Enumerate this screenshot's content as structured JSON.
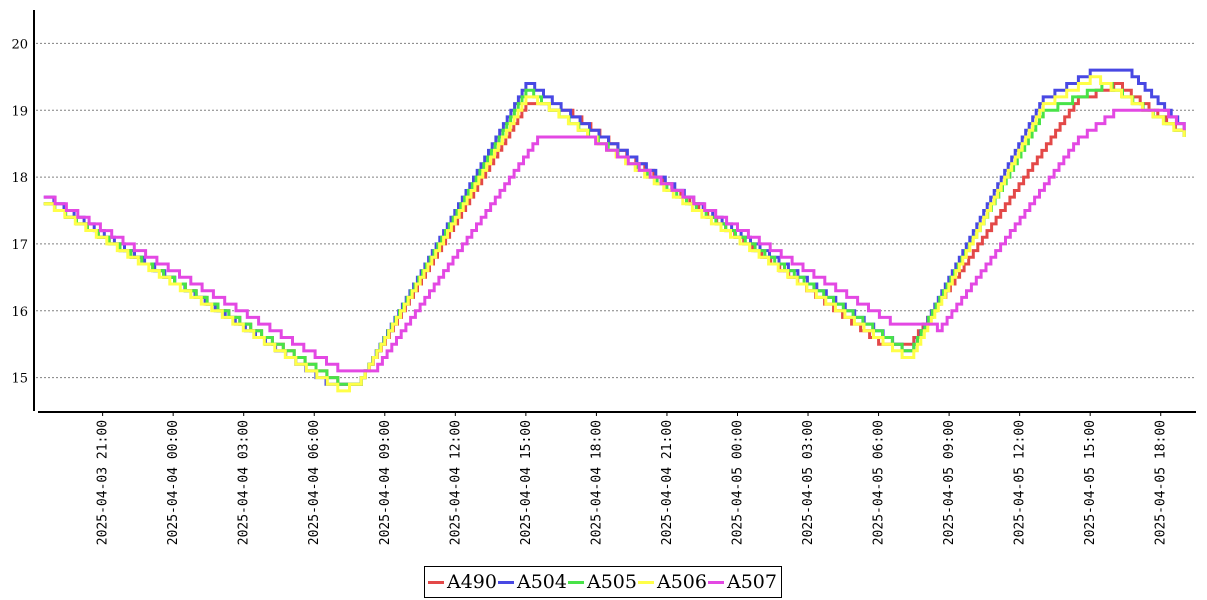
{
  "chart_data": {
    "type": "line",
    "step": true,
    "title": "",
    "xlabel": "",
    "ylabel": "",
    "ylim": [
      14.5,
      20.5
    ],
    "yticks": [
      15,
      16,
      17,
      18,
      19,
      20
    ],
    "xlim": [
      "2025-04-03 18:10",
      "2025-04-05 19:30"
    ],
    "xticks": [
      "2025-04-03 21:00",
      "2025-04-04 00:00",
      "2025-04-04 03:00",
      "2025-04-04 06:00",
      "2025-04-04 09:00",
      "2025-04-04 12:00",
      "2025-04-04 15:00",
      "2025-04-04 18:00",
      "2025-04-04 21:00",
      "2025-04-05 00:00",
      "2025-04-05 03:00",
      "2025-04-05 06:00",
      "2025-04-05 09:00",
      "2025-04-05 12:00",
      "2025-04-05 15:00",
      "2025-04-05 18:00"
    ],
    "grid": "horizontal-dotted",
    "legend": "bottom-center",
    "series": [
      {
        "name": "A490",
        "color": "#e34848",
        "points": [
          [
            "2025-04-03 18:30",
            17.6
          ],
          [
            "2025-04-04 07:00",
            14.9
          ],
          [
            "2025-04-04 08:00",
            15.0
          ],
          [
            "2025-04-04 15:00",
            19.1
          ],
          [
            "2025-04-04 17:00",
            18.9
          ],
          [
            "2025-04-05 06:00",
            15.5
          ],
          [
            "2025-04-05 07:30",
            15.6
          ],
          [
            "2025-04-05 14:30",
            19.2
          ],
          [
            "2025-04-05 16:00",
            19.4
          ],
          [
            "2025-04-05 19:00",
            18.6
          ]
        ]
      },
      {
        "name": "A504",
        "color": "#4848e3",
        "points": [
          [
            "2025-04-03 18:30",
            17.7
          ],
          [
            "2025-04-04 06:30",
            14.9
          ],
          [
            "2025-04-04 08:00",
            15.0
          ],
          [
            "2025-04-04 15:00",
            19.4
          ],
          [
            "2025-04-04 16:30",
            19.0
          ],
          [
            "2025-04-05 07:00",
            15.4
          ],
          [
            "2025-04-05 07:30",
            15.5
          ],
          [
            "2025-04-05 13:00",
            19.2
          ],
          [
            "2025-04-05 15:00",
            19.6
          ],
          [
            "2025-04-05 16:30",
            19.6
          ],
          [
            "2025-04-05 19:00",
            18.7
          ]
        ]
      },
      {
        "name": "A505",
        "color": "#48e348",
        "points": [
          [
            "2025-04-03 18:30",
            17.6
          ],
          [
            "2025-04-04 07:00",
            14.9
          ],
          [
            "2025-04-04 08:00",
            15.0
          ],
          [
            "2025-04-04 15:00",
            19.3
          ],
          [
            "2025-04-04 16:00",
            19.0
          ],
          [
            "2025-04-05 07:00",
            15.4
          ],
          [
            "2025-04-05 07:30",
            15.5
          ],
          [
            "2025-04-05 13:00",
            19.0
          ],
          [
            "2025-04-05 15:30",
            19.4
          ],
          [
            "2025-04-05 19:00",
            18.6
          ]
        ]
      },
      {
        "name": "A506",
        "color": "#ffff48",
        "points": [
          [
            "2025-04-03 18:30",
            17.6
          ],
          [
            "2025-04-04 07:00",
            14.8
          ],
          [
            "2025-04-04 08:00",
            15.0
          ],
          [
            "2025-04-04 15:00",
            19.2
          ],
          [
            "2025-04-04 16:00",
            19.0
          ],
          [
            "2025-04-05 07:00",
            15.3
          ],
          [
            "2025-04-05 07:30",
            15.4
          ],
          [
            "2025-04-05 13:00",
            19.1
          ],
          [
            "2025-04-05 15:00",
            19.5
          ],
          [
            "2025-04-05 19:00",
            18.6
          ]
        ]
      },
      {
        "name": "A507",
        "color": "#e348e3",
        "points": [
          [
            "2025-04-03 18:30",
            17.7
          ],
          [
            "2025-04-04 07:00",
            15.1
          ],
          [
            "2025-04-04 08:30",
            15.1
          ],
          [
            "2025-04-04 15:30",
            18.6
          ],
          [
            "2025-04-04 17:30",
            18.6
          ],
          [
            "2025-04-05 06:30",
            15.8
          ],
          [
            "2025-04-05 08:30",
            15.7
          ],
          [
            "2025-04-05 14:30",
            18.6
          ],
          [
            "2025-04-05 16:00",
            19.0
          ],
          [
            "2025-04-05 18:00",
            19.0
          ],
          [
            "2025-04-05 19:00",
            18.7
          ]
        ]
      }
    ]
  }
}
